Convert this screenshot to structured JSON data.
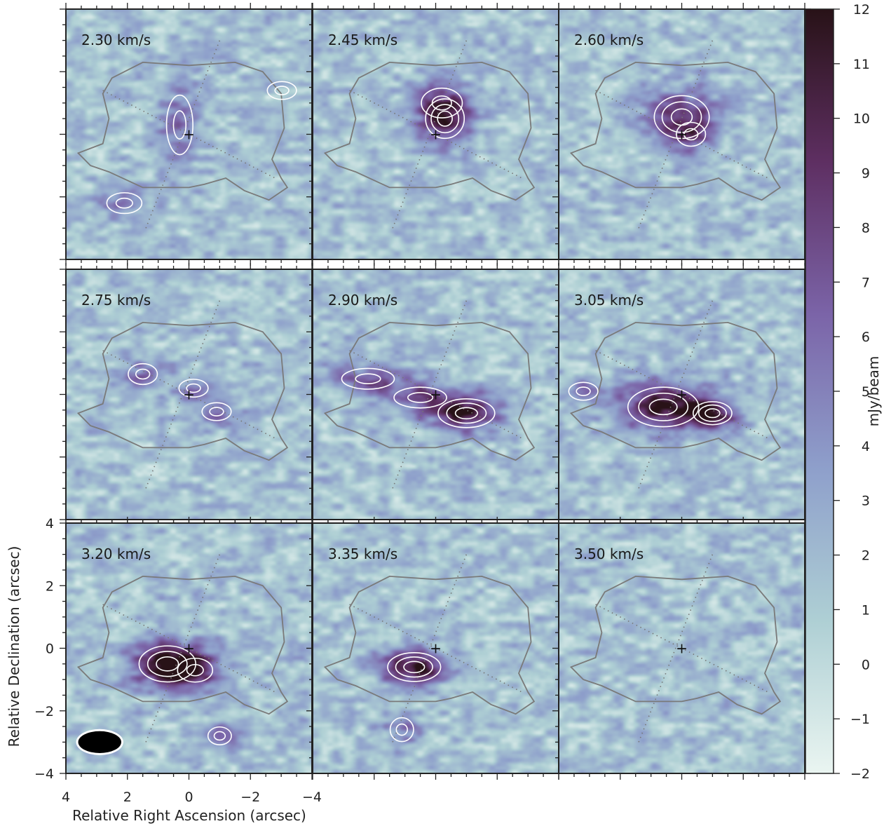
{
  "chart_data": {
    "type": "heatmap",
    "panels": [
      {
        "label": "2.30 km/s",
        "velocity": 2.3,
        "blobs": [
          [
            0.3,
            0.3,
            4.5,
            0.45,
            1.0
          ],
          [
            2.1,
            -2.2,
            3.8,
            0.6,
            0.35
          ]
        ]
      },
      {
        "label": "2.45 km/s",
        "velocity": 2.45,
        "blobs": [
          [
            -0.3,
            0.5,
            7.0,
            0.6,
            0.6
          ],
          [
            -0.2,
            1.0,
            4.0,
            0.7,
            0.5
          ],
          [
            5.0,
            1.4,
            4.0,
            0.5,
            0.3
          ]
        ]
      },
      {
        "label": "2.60 km/s",
        "velocity": 2.6,
        "blobs": [
          [
            0.0,
            0.55,
            7.0,
            0.85,
            0.65
          ],
          [
            -0.3,
            0.0,
            3.5,
            0.5,
            0.4
          ]
        ]
      },
      {
        "label": "2.75 km/s",
        "velocity": 2.75,
        "blobs": [
          [
            1.5,
            0.65,
            4.0,
            0.5,
            0.35
          ],
          [
            -0.15,
            0.2,
            4.0,
            0.5,
            0.3
          ],
          [
            -0.9,
            -0.55,
            3.8,
            0.5,
            0.3
          ]
        ]
      },
      {
        "label": "2.90 km/s",
        "velocity": 2.9,
        "blobs": [
          [
            2.2,
            0.5,
            5.0,
            0.9,
            0.35
          ],
          [
            -1.0,
            -0.6,
            9.5,
            0.8,
            0.4
          ],
          [
            0.5,
            -0.1,
            5.5,
            0.9,
            0.35
          ]
        ]
      },
      {
        "label": "3.05 km/s",
        "velocity": 3.05,
        "blobs": [
          [
            0.6,
            -0.4,
            10.0,
            1.0,
            0.55
          ],
          [
            -1.0,
            -0.6,
            8.0,
            0.6,
            0.35
          ],
          [
            3.2,
            0.1,
            4.0,
            0.5,
            0.3
          ]
        ]
      },
      {
        "label": "3.20 km/s",
        "velocity": 3.2,
        "blobs": [
          [
            0.7,
            -0.5,
            11.0,
            0.8,
            0.5
          ],
          [
            -0.2,
            -0.7,
            5.5,
            0.6,
            0.4
          ],
          [
            -1.0,
            -2.8,
            4.5,
            0.4,
            0.3
          ]
        ]
      },
      {
        "label": "3.35 km/s",
        "velocity": 3.35,
        "blobs": [
          [
            0.7,
            -0.6,
            10.0,
            0.75,
            0.4
          ],
          [
            1.1,
            -2.6,
            4.0,
            0.4,
            0.4
          ]
        ]
      },
      {
        "label": "3.50 km/s",
        "velocity": 3.5,
        "blobs": []
      }
    ],
    "xlabel": "Relative Right Ascension (arcsec)",
    "ylabel": "Relative Declination (arcsec)",
    "xlim": [
      4,
      -4
    ],
    "ylim": [
      -4,
      4
    ],
    "x_ticks": [
      "4",
      "2",
      "0",
      "−2",
      "−4"
    ],
    "y_ticks": [
      "4",
      "2",
      "0",
      "−2",
      "−4"
    ],
    "colorbar": {
      "label": "mJy/beam",
      "range": [
        -2,
        12
      ],
      "ticks": [
        "−2",
        "−1",
        "0",
        "1",
        "2",
        "3",
        "4",
        "5",
        "6",
        "7",
        "8",
        "9",
        "10",
        "11",
        "12"
      ],
      "colormap": [
        "#eaf5f1",
        "#aecfd4",
        "#8e9fcb",
        "#7b64a8",
        "#5e2f62",
        "#281217"
      ]
    },
    "beam": {
      "major_arcsec": 1.4,
      "minor_arcsec": 0.7,
      "position": "bottom-left"
    },
    "center_marker": "+",
    "contour_colors": {
      "emission": "#ffffff",
      "outline": "#7a7a7a"
    }
  }
}
